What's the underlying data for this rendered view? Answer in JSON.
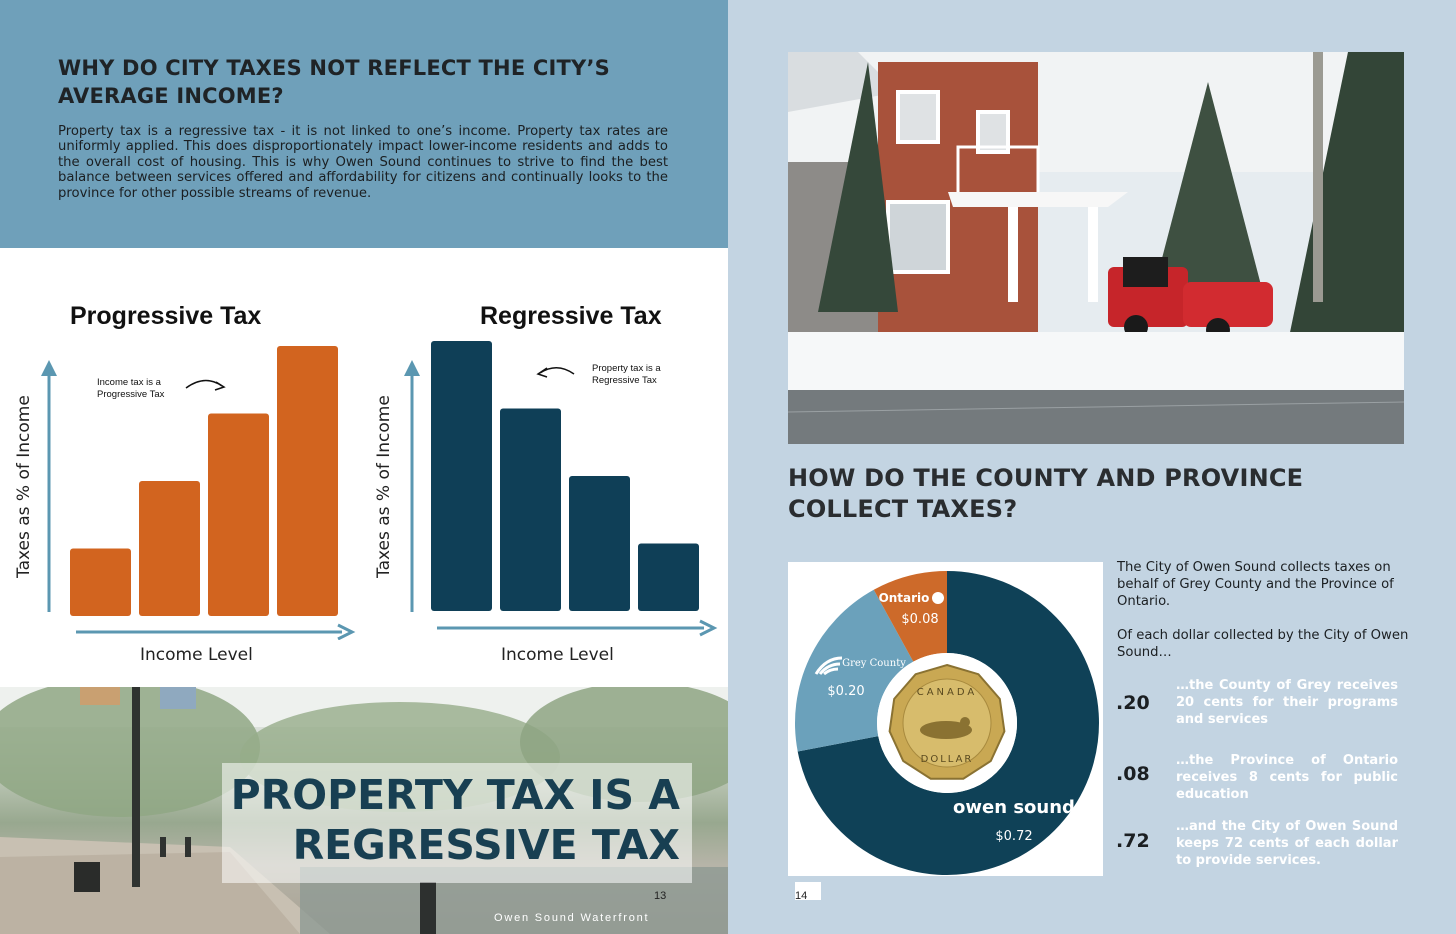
{
  "left_page": {
    "heading": "WHY DO CITY TAXES NOT REFLECT THE CITY’S AVERAGE INCOME?",
    "body": "Property tax is a regressive tax - it is not linked to one’s income.  Property tax rates are uniformly applied.   This does disproportionately impact lower-income residents and adds to the overall cost of housing.  This is why Owen Sound continues to strive to find the best balance between services offered and affordability for citizens and continually looks to the province for other possible streams of revenue.",
    "banner": "PROPERTY TAX IS A REGRESSIVE TAX",
    "page_number": "13",
    "photo_caption": "Owen Sound Waterfront"
  },
  "right_page": {
    "heading": "HOW DO THE COUNTY AND PROVINCE COLLECT TAXES?",
    "intro": "The City of Owen Sound collects taxes on behalf of Grey County and the Province of Ontario.",
    "intro2": "Of each dollar collected by the City of Owen Sound…",
    "stats": [
      {
        "num": ".20",
        "text": "…the County of Grey receives 20 cents for their programs and services"
      },
      {
        "num": ".08",
        "text": "…the Province of Ontario receives 8 cents for public education"
      },
      {
        "num": ".72",
        "text": "…and the City of Owen Sound keeps 72 cents of each dollar to provide services."
      }
    ],
    "page_number": "14"
  },
  "chart_data": [
    {
      "type": "bar",
      "title": "Progressive Tax",
      "xlabel": "Income Level",
      "ylabel": "Taxes as % of Income",
      "annotation": "Income tax is a Progressive Tax",
      "categories": [
        "",
        "",
        "",
        ""
      ],
      "values": [
        1,
        2,
        3,
        4
      ],
      "color": "#d2641f"
    },
    {
      "type": "bar",
      "title": "Regressive Tax",
      "xlabel": "Income Level",
      "ylabel": "Taxes as % of Income",
      "annotation": "Property tax is a Regressive Tax",
      "categories": [
        "",
        "",
        "",
        ""
      ],
      "values": [
        4,
        3,
        2,
        1
      ],
      "color": "#0f3f57"
    },
    {
      "type": "pie",
      "slices": [
        {
          "label": "owen sound",
          "value": 0.72,
          "value_label": "$0.72",
          "color": "#0f4157"
        },
        {
          "label": "Grey County",
          "value": 0.2,
          "value_label": "$0.20",
          "color": "#6ba1bb"
        },
        {
          "label": "Ontario",
          "value": 0.08,
          "value_label": "$0.08",
          "color": "#cd6a2a"
        }
      ],
      "center_coin": {
        "top": "CANADA",
        "bottom": "DOLLAR"
      }
    }
  ],
  "colors": {
    "top_band": "#6fa0ba",
    "right_bg": "#c3d4e2",
    "progressive": "#d2641f",
    "regressive": "#0f3f57",
    "axis": "#5b97b1",
    "banner_text": "#183f52"
  }
}
